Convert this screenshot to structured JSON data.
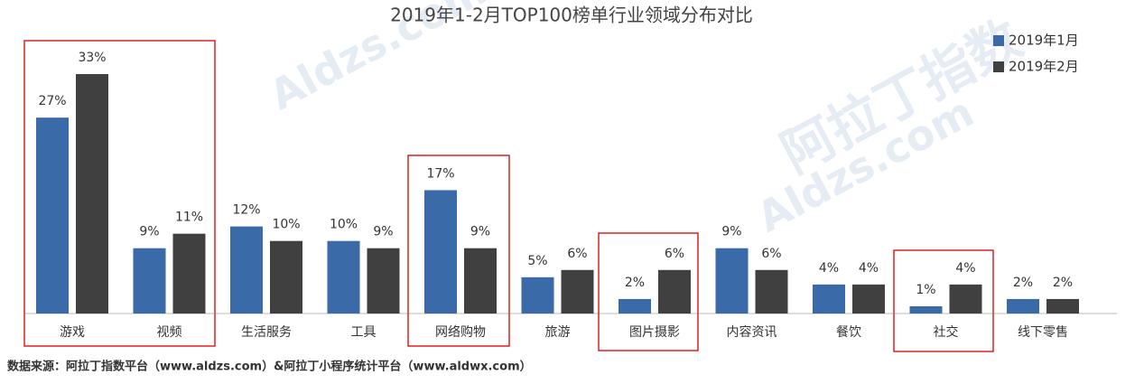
{
  "chart_data": {
    "type": "bar",
    "title": "2019年1-2月TOP100榜单行业领域分布对比",
    "categories": [
      "游戏",
      "视频",
      "生活服务",
      "工具",
      "网络购物",
      "旅游",
      "图片摄影",
      "内容资讯",
      "餐饮",
      "社交",
      "线下零售"
    ],
    "series": [
      {
        "name": "2019年1月",
        "color": "#3a6aa8",
        "values": [
          27,
          9,
          12,
          10,
          17,
          5,
          2,
          9,
          4,
          1,
          2
        ],
        "value_labels": [
          "27%",
          "9%",
          "12%",
          "10%",
          "17%",
          "5%",
          "2%",
          "9%",
          "4%",
          "1%",
          "2%"
        ]
      },
      {
        "name": "2019年2月",
        "color": "#404040",
        "values": [
          33,
          11,
          10,
          9,
          9,
          6,
          6,
          6,
          4,
          4,
          2
        ],
        "value_labels": [
          "33%",
          "11%",
          "10%",
          "9%",
          "9%",
          "6%",
          "6%",
          "6%",
          "4%",
          "4%",
          "2%"
        ]
      }
    ],
    "legend": "top-right",
    "source": "数据来源：阿拉丁指数平台（www.aldzs.com）&阿拉丁小程序统计平台（www.aldwx.com）",
    "watermark": {
      "logo": "阿拉丁指数",
      "site": "Aldzs.com"
    }
  }
}
